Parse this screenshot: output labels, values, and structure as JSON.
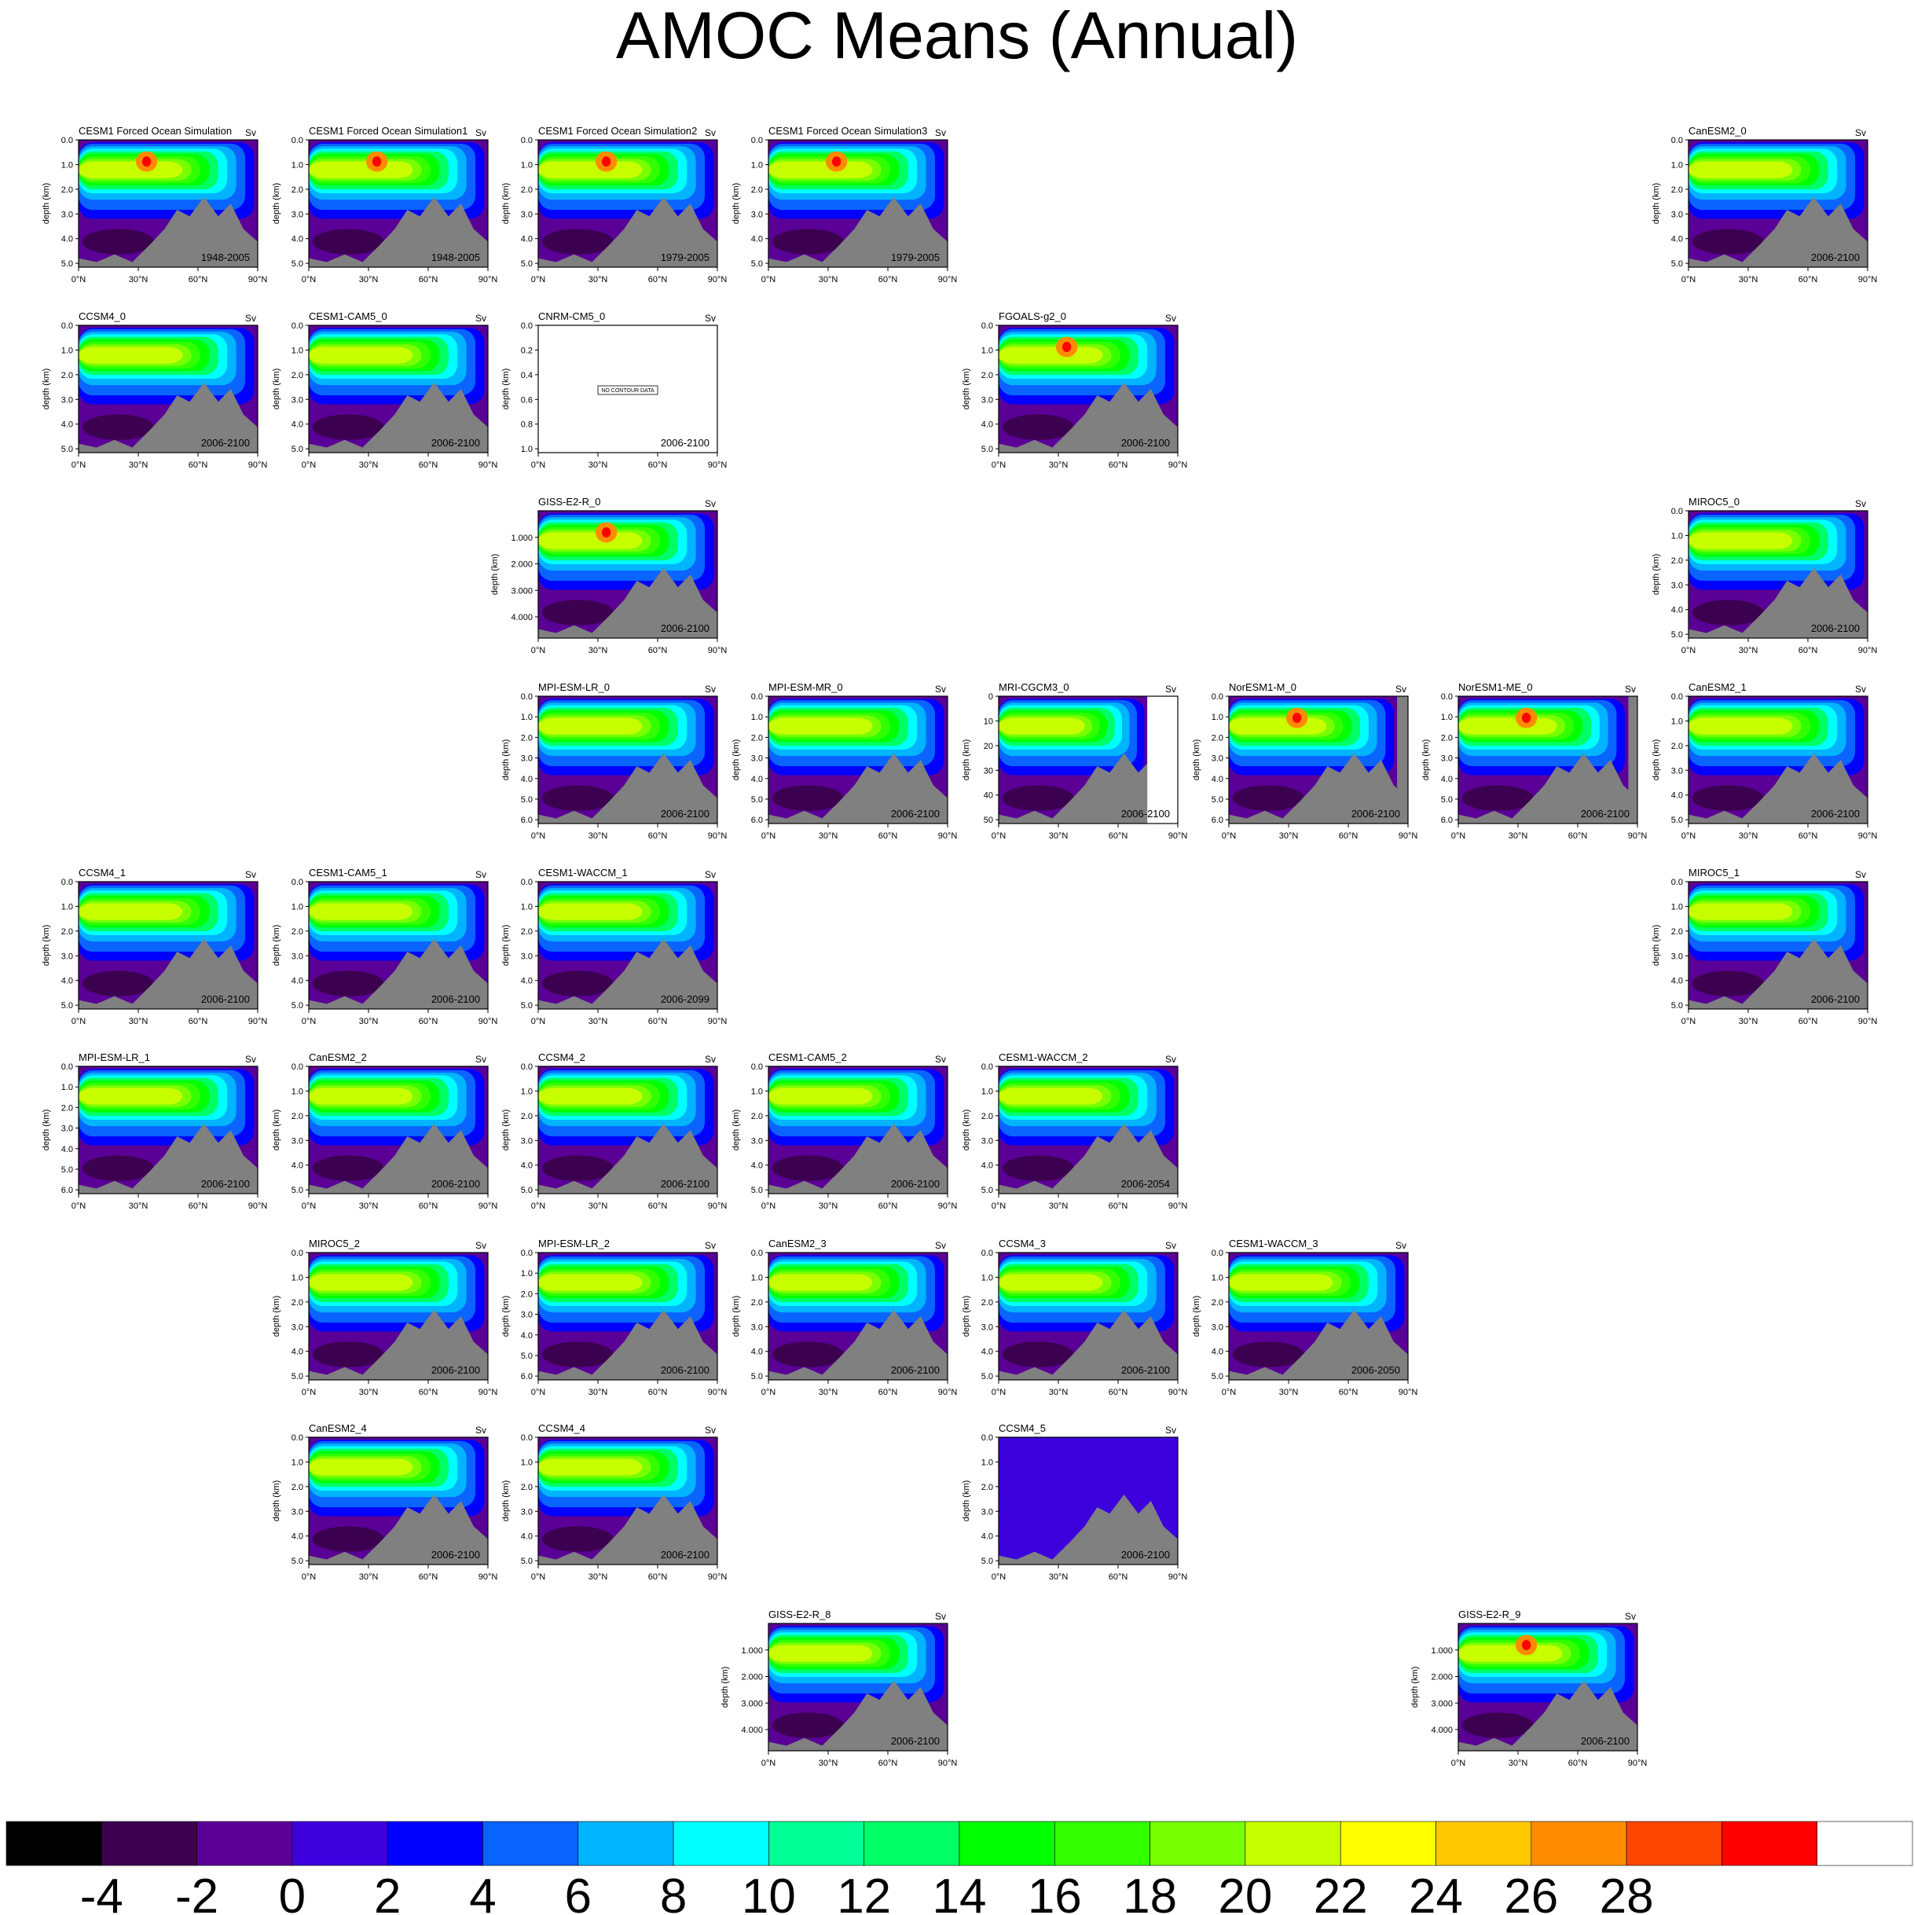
{
  "title": "AMOC Means (Annual)",
  "units_label": "Sv",
  "ylabel": "depth (km)",
  "x_ticks": [
    "0°N",
    "30°N",
    "60°N",
    "90°N"
  ],
  "no_data_text": "NO CONTOUR DATA",
  "colorbar": {
    "colors": [
      "#000000",
      "#3c0050",
      "#5a0096",
      "#3c00dc",
      "#0000ff",
      "#0a64ff",
      "#00b4ff",
      "#00ffff",
      "#00ff96",
      "#00ff64",
      "#00ff00",
      "#32ff00",
      "#78ff00",
      "#c8ff00",
      "#ffff00",
      "#ffc800",
      "#ff8c00",
      "#ff4600",
      "#ff0000",
      "#ffffff"
    ],
    "tick_labels": [
      "-4",
      "-2",
      "0",
      "2",
      "4",
      "6",
      "8",
      "10",
      "12",
      "14",
      "16",
      "18",
      "20",
      "22",
      "24",
      "26",
      "28"
    ]
  },
  "chart_data": [
    {
      "type": "contour",
      "title": "CESM1 Forced Ocean Simulation",
      "period": "1948-2005",
      "yticks": [
        "0.0",
        "1.0",
        "2.0",
        "3.0",
        "4.0",
        "5.0"
      ]
    },
    {
      "type": "contour",
      "title": "CESM1 Forced Ocean Simulation1",
      "period": "1948-2005",
      "yticks": [
        "0.0",
        "1.0",
        "2.0",
        "3.0",
        "4.0",
        "5.0"
      ]
    },
    {
      "type": "contour",
      "title": "CESM1 Forced Ocean Simulation2",
      "period": "1979-2005",
      "yticks": [
        "0.0",
        "1.0",
        "2.0",
        "3.0",
        "4.0",
        "5.0"
      ]
    },
    {
      "type": "contour",
      "title": "CESM1 Forced Ocean Simulation3",
      "period": "1979-2005",
      "yticks": [
        "0.0",
        "1.0",
        "2.0",
        "3.0",
        "4.0",
        "5.0"
      ]
    },
    {
      "type": "contour",
      "title": "CanESM2_0",
      "period": "2006-2100",
      "yticks": [
        "0.0",
        "1.0",
        "2.0",
        "3.0",
        "4.0",
        "5.0"
      ]
    },
    {
      "type": "contour",
      "title": "CCSM4_0",
      "period": "2006-2100",
      "yticks": [
        "0.0",
        "1.0",
        "2.0",
        "3.0",
        "4.0",
        "5.0"
      ]
    },
    {
      "type": "contour",
      "title": "CESM1-CAM5_0",
      "period": "2006-2100",
      "yticks": [
        "0.0",
        "1.0",
        "2.0",
        "3.0",
        "4.0",
        "5.0"
      ]
    },
    {
      "type": "contour",
      "title": "CNRM-CM5_0",
      "period": "2006-2100",
      "yticks": [
        "0.0",
        "0.2",
        "0.4",
        "0.6",
        "0.8",
        "1.0"
      ]
    },
    {
      "type": "contour",
      "title": "FGOALS-g2_0",
      "period": "2006-2100",
      "yticks": [
        "0.0",
        "1.0",
        "2.0",
        "3.0",
        "4.0",
        "5.0"
      ]
    },
    {
      "type": "contour",
      "title": "GISS-E2-R_0",
      "period": "2006-2100",
      "yticks": [
        "1.000",
        "2.000",
        "3.000",
        "4.000"
      ]
    },
    {
      "type": "contour",
      "title": "MIROC5_0",
      "period": "2006-2100",
      "yticks": [
        "0.0",
        "1.0",
        "2.0",
        "3.0",
        "4.0",
        "5.0"
      ]
    },
    {
      "type": "contour",
      "title": "MPI-ESM-LR_0",
      "period": "2006-2100",
      "yticks": [
        "0.0",
        "1.0",
        "2.0",
        "3.0",
        "4.0",
        "5.0",
        "6.0"
      ]
    },
    {
      "type": "contour",
      "title": "MPI-ESM-MR_0",
      "period": "2006-2100",
      "yticks": [
        "0.0",
        "1.0",
        "2.0",
        "3.0",
        "4.0",
        "5.0",
        "6.0"
      ]
    },
    {
      "type": "contour",
      "title": "MRI-CGCM3_0",
      "period": "2006-2100",
      "yticks": [
        "0",
        "10",
        "20",
        "30",
        "40",
        "50"
      ]
    },
    {
      "type": "contour",
      "title": "NorESM1-M_0",
      "period": "2006-2100",
      "yticks": [
        "0.0",
        "1.0",
        "2.0",
        "3.0",
        "4.0",
        "5.0",
        "6.0"
      ]
    },
    {
      "type": "contour",
      "title": "NorESM1-ME_0",
      "period": "2006-2100",
      "yticks": [
        "0.0",
        "1.0",
        "2.0",
        "3.0",
        "4.0",
        "5.0",
        "6.0"
      ]
    },
    {
      "type": "contour",
      "title": "CanESM2_1",
      "period": "2006-2100",
      "yticks": [
        "0.0",
        "1.0",
        "2.0",
        "3.0",
        "4.0",
        "5.0"
      ]
    },
    {
      "type": "contour",
      "title": "CCSM4_1",
      "period": "2006-2100",
      "yticks": [
        "0.0",
        "1.0",
        "2.0",
        "3.0",
        "4.0",
        "5.0"
      ]
    },
    {
      "type": "contour",
      "title": "CESM1-CAM5_1",
      "period": "2006-2100",
      "yticks": [
        "0.0",
        "1.0",
        "2.0",
        "3.0",
        "4.0",
        "5.0"
      ]
    },
    {
      "type": "contour",
      "title": "CESM1-WACCM_1",
      "period": "2006-2099",
      "yticks": [
        "0.0",
        "1.0",
        "2.0",
        "3.0",
        "4.0",
        "5.0"
      ]
    },
    {
      "type": "contour",
      "title": "MIROC5_1",
      "period": "2006-2100",
      "yticks": [
        "0.0",
        "1.0",
        "2.0",
        "3.0",
        "4.0",
        "5.0"
      ]
    },
    {
      "type": "contour",
      "title": "MPI-ESM-LR_1",
      "period": "2006-2100",
      "yticks": [
        "0.0",
        "1.0",
        "2.0",
        "3.0",
        "4.0",
        "5.0",
        "6.0"
      ]
    },
    {
      "type": "contour",
      "title": "CanESM2_2",
      "period": "2006-2100",
      "yticks": [
        "0.0",
        "1.0",
        "2.0",
        "3.0",
        "4.0",
        "5.0"
      ]
    },
    {
      "type": "contour",
      "title": "CCSM4_2",
      "period": "2006-2100",
      "yticks": [
        "0.0",
        "1.0",
        "2.0",
        "3.0",
        "4.0",
        "5.0"
      ]
    },
    {
      "type": "contour",
      "title": "CESM1-CAM5_2",
      "period": "2006-2100",
      "yticks": [
        "0.0",
        "1.0",
        "2.0",
        "3.0",
        "4.0",
        "5.0"
      ]
    },
    {
      "type": "contour",
      "title": "CESM1-WACCM_2",
      "period": "2006-2054",
      "yticks": [
        "0.0",
        "1.0",
        "2.0",
        "3.0",
        "4.0",
        "5.0"
      ]
    },
    {
      "type": "contour",
      "title": "MIROC5_2",
      "period": "2006-2100",
      "yticks": [
        "0.0",
        "1.0",
        "2.0",
        "3.0",
        "4.0",
        "5.0"
      ]
    },
    {
      "type": "contour",
      "title": "MPI-ESM-LR_2",
      "period": "2006-2100",
      "yticks": [
        "0.0",
        "1.0",
        "2.0",
        "3.0",
        "4.0",
        "5.0",
        "6.0"
      ]
    },
    {
      "type": "contour",
      "title": "CanESM2_3",
      "period": "2006-2100",
      "yticks": [
        "0.0",
        "1.0",
        "2.0",
        "3.0",
        "4.0",
        "5.0"
      ]
    },
    {
      "type": "contour",
      "title": "CCSM4_3",
      "period": "2006-2100",
      "yticks": [
        "0.0",
        "1.0",
        "2.0",
        "3.0",
        "4.0",
        "5.0"
      ]
    },
    {
      "type": "contour",
      "title": "CESM1-WACCM_3",
      "period": "2006-2050",
      "yticks": [
        "0.0",
        "1.0",
        "2.0",
        "3.0",
        "4.0",
        "5.0"
      ]
    },
    {
      "type": "contour",
      "title": "CanESM2_4",
      "period": "2006-2100",
      "yticks": [
        "0.0",
        "1.0",
        "2.0",
        "3.0",
        "4.0",
        "5.0"
      ]
    },
    {
      "type": "contour",
      "title": "CCSM4_4",
      "period": "2006-2100",
      "yticks": [
        "0.0",
        "1.0",
        "2.0",
        "3.0",
        "4.0",
        "5.0"
      ]
    },
    {
      "type": "contour",
      "title": "CCSM4_5",
      "period": "2006-2100",
      "yticks": [
        "0.0",
        "1.0",
        "2.0",
        "3.0",
        "4.0",
        "5.0"
      ]
    },
    {
      "type": "contour",
      "title": "GISS-E2-R_8",
      "period": "2006-2100",
      "yticks": [
        "1.000",
        "2.000",
        "3.000",
        "4.000"
      ]
    },
    {
      "type": "contour",
      "title": "GISS-E2-R_9",
      "period": "2006-2100",
      "yticks": [
        "1.000",
        "2.000",
        "3.000",
        "4.000"
      ]
    }
  ]
}
